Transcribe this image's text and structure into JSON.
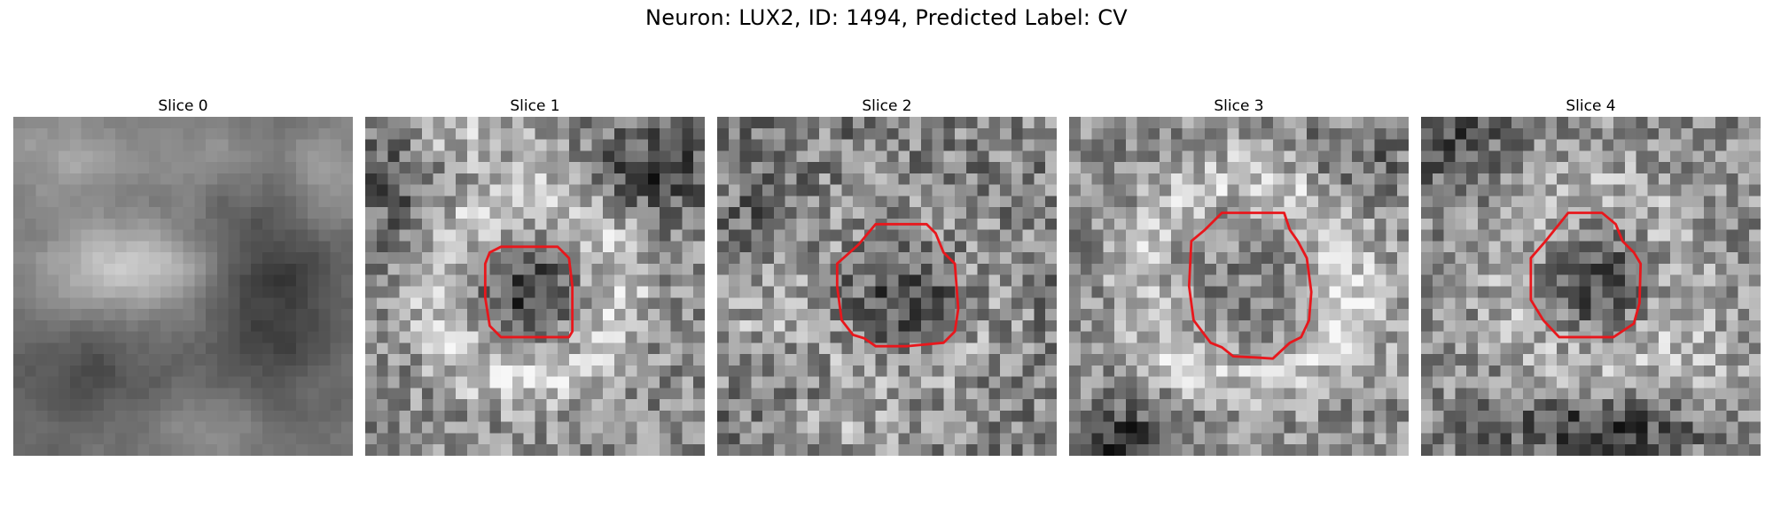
{
  "figure": {
    "title": "Neuron: LUX2, ID: 1494, Predicted Label: CV"
  },
  "colors": {
    "background": "#ffffff",
    "contour": "#e8171c",
    "colormap": "gray"
  },
  "panels": [
    {
      "title": "Slice 0"
    },
    {
      "title": "Slice 1"
    },
    {
      "title": "Slice 2"
    },
    {
      "title": "Slice 3"
    },
    {
      "title": "Slice 4"
    }
  ]
}
